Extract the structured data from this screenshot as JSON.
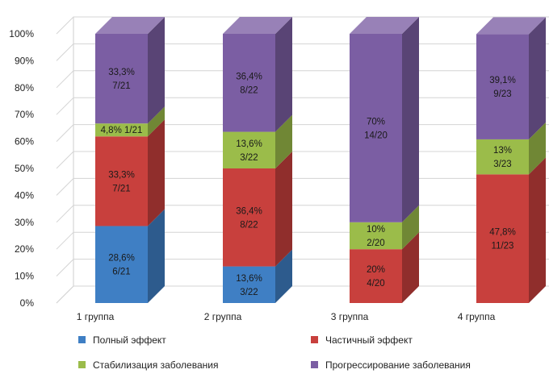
{
  "chart_data": {
    "type": "bar",
    "stacked": true,
    "style": "3d",
    "categories": [
      "1 группа",
      "2 группа",
      "3 группа",
      "4 группа"
    ],
    "ylim": [
      0,
      100
    ],
    "yticks": [
      "0%",
      "10%",
      "20%",
      "30%",
      "40%",
      "50%",
      "60%",
      "70%",
      "80%",
      "90%",
      "100%"
    ],
    "grid": true,
    "legend_position": "bottom",
    "series": [
      {
        "name": "Полный эффект",
        "color": "#3f7fc4",
        "values": [
          28.6,
          13.6,
          0,
          0
        ],
        "labels": [
          [
            "28,6%",
            "6/21"
          ],
          [
            "13,6%",
            "3/22"
          ],
          null,
          null
        ]
      },
      {
        "name": "Частичный эффект",
        "color": "#c8403d",
        "values": [
          33.3,
          36.4,
          20,
          47.8
        ],
        "labels": [
          [
            "33,3%",
            "7/21"
          ],
          [
            "36,4%",
            "8/22"
          ],
          [
            "20%",
            "4/20"
          ],
          [
            "47,8%",
            "11/23"
          ]
        ]
      },
      {
        "name": "Стабилизация заболевания",
        "color": "#9bbc4a",
        "values": [
          4.8,
          13.6,
          10,
          13
        ],
        "labels": [
          [
            "4,8% 1/21"
          ],
          [
            "13,6%",
            "3/22"
          ],
          [
            "10%",
            "2/20"
          ],
          [
            "13%",
            "3/23"
          ]
        ]
      },
      {
        "name": "Прогрессирование заболевания",
        "color": "#7b5ea3",
        "values": [
          33.3,
          36.4,
          70,
          39.1
        ],
        "labels": [
          [
            "33,3%",
            "7/21"
          ],
          [
            "36,4%",
            "8/22"
          ],
          [
            "70%",
            "14/20"
          ],
          [
            "39,1%",
            "9/23"
          ]
        ]
      }
    ]
  }
}
